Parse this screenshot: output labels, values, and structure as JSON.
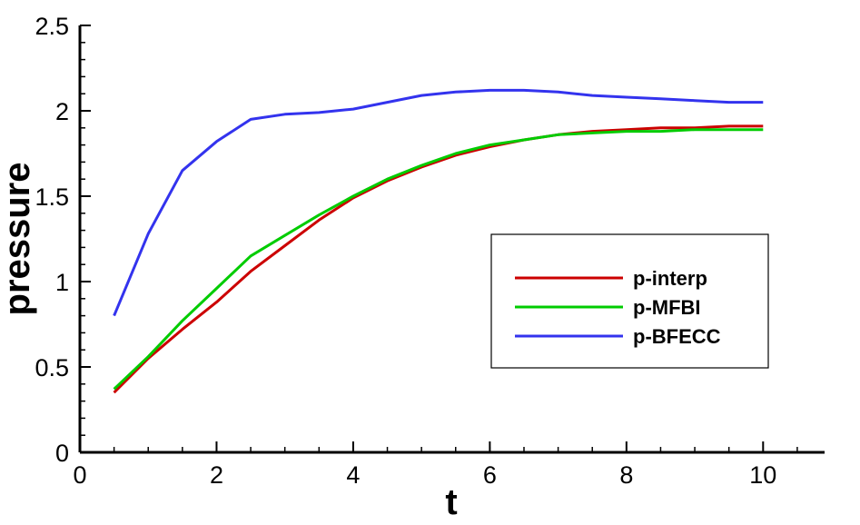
{
  "chart_data": {
    "type": "line",
    "title": "",
    "xlabel": "t",
    "ylabel": "pressure",
    "xlim": [
      0,
      10.9
    ],
    "ylim": [
      0,
      2.5
    ],
    "xticks": [
      0,
      2,
      4,
      6,
      8,
      10
    ],
    "xtick_labels": [
      "0",
      "2",
      "4",
      "6",
      "8",
      "10"
    ],
    "yticks": [
      0,
      0.5,
      1,
      1.5,
      2,
      2.5
    ],
    "ytick_labels": [
      "0",
      "0.5",
      "1",
      "1.5",
      "2",
      "2.5"
    ],
    "grid": false,
    "legend_position": "right-middle",
    "series": [
      {
        "name": "p-interp",
        "color": "#cc0000",
        "x": [
          0.5,
          1,
          1.5,
          2,
          2.5,
          3,
          3.5,
          4,
          4.5,
          5,
          5.5,
          6,
          6.5,
          7,
          7.5,
          8,
          8.5,
          9,
          9.5,
          10
        ],
        "y": [
          0.35,
          0.55,
          0.72,
          0.88,
          1.06,
          1.21,
          1.36,
          1.49,
          1.59,
          1.67,
          1.74,
          1.79,
          1.83,
          1.86,
          1.88,
          1.89,
          1.9,
          1.9,
          1.91,
          1.91
        ]
      },
      {
        "name": "p-MFBI",
        "color": "#00cc00",
        "x": [
          0.5,
          1,
          1.5,
          2,
          2.5,
          3,
          3.5,
          4,
          4.5,
          5,
          5.5,
          6,
          6.5,
          7,
          7.5,
          8,
          8.5,
          9,
          9.5,
          10
        ],
        "y": [
          0.37,
          0.56,
          0.77,
          0.96,
          1.15,
          1.27,
          1.39,
          1.5,
          1.6,
          1.68,
          1.75,
          1.8,
          1.83,
          1.86,
          1.87,
          1.88,
          1.88,
          1.89,
          1.89,
          1.89
        ]
      },
      {
        "name": "p-BFECC",
        "color": "#3333ee",
        "x": [
          0.5,
          1,
          1.5,
          2,
          2.5,
          3,
          3.5,
          4,
          4.5,
          5,
          5.5,
          6,
          6.5,
          7,
          7.5,
          8,
          8.5,
          9,
          9.5,
          10
        ],
        "y": [
          0.8,
          1.28,
          1.65,
          1.82,
          1.95,
          1.98,
          1.99,
          2.01,
          2.05,
          2.09,
          2.11,
          2.12,
          2.12,
          2.11,
          2.09,
          2.08,
          2.07,
          2.06,
          2.05,
          2.05
        ]
      }
    ]
  }
}
